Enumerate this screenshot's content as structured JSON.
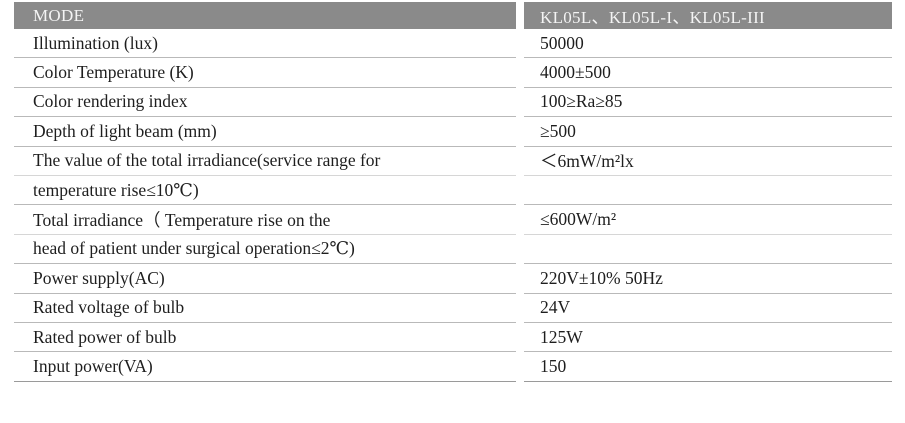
{
  "table": {
    "header": {
      "param": "MODE",
      "value": "KL05L、KL05L-I、KL05L-III"
    },
    "rows": [
      {
        "param": " Illumination (lux)",
        "value": "50000"
      },
      {
        "param": "Color Temperature (K)",
        "value": "4000±500"
      },
      {
        "param": "Color rendering index",
        "value": "100≥Ra≥85"
      },
      {
        "param": "Depth of light beam (mm)",
        "value": "≥500"
      },
      {
        "param": "The value of the total irradiance(service range for",
        "value": "＜6mW/m²lx"
      },
      {
        "param": "temperature rise≤10℃)",
        "value": ""
      },
      {
        "param": "Total irradiance（ Temperature rise on the",
        "value": "≤600W/m²"
      },
      {
        "param": "head of patient under surgical operation≤2℃)",
        "value": ""
      },
      {
        "param": "Power supply(AC)",
        "value": "220V±10% 50Hz"
      },
      {
        "param": "Rated voltage of bulb",
        "value": "24V"
      },
      {
        "param": "Rated power of bulb",
        "value": "125W"
      },
      {
        "param": "Input power(VA)",
        "value": "150"
      }
    ]
  }
}
